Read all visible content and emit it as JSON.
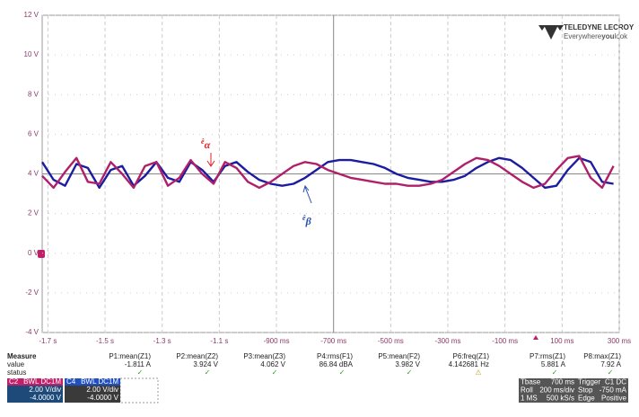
{
  "chart_data": {
    "type": "line",
    "xlim": [
      -1.72,
      0.3
    ],
    "ylim": [
      -4,
      12
    ],
    "xticks": [
      {
        "value": -1.7,
        "label": "-1.7 s"
      },
      {
        "value": -1.5,
        "label": "-1.5 s"
      },
      {
        "value": -1.3,
        "label": "-1.3 s"
      },
      {
        "value": -1.1,
        "label": "-1.1 s"
      },
      {
        "value": -0.9,
        "label": "-900 ms"
      },
      {
        "value": -0.7,
        "label": "-700 ms"
      },
      {
        "value": -0.5,
        "label": "-500 ms"
      },
      {
        "value": -0.3,
        "label": "-300 ms"
      },
      {
        "value": -0.1,
        "label": "-100 ms"
      },
      {
        "value": 0.1,
        "label": "100 ms"
      },
      {
        "value": 0.3,
        "label": "300 ms"
      }
    ],
    "yticks": [
      {
        "value": 12,
        "label": "12 V"
      },
      {
        "value": 10,
        "label": "10 V"
      },
      {
        "value": 8,
        "label": "8 V"
      },
      {
        "value": 6,
        "label": "6 V"
      },
      {
        "value": 4,
        "label": "4 V"
      },
      {
        "value": 2,
        "label": "2 V"
      },
      {
        "value": 0,
        "label": "0 V"
      },
      {
        "value": -2,
        "label": "-2 V"
      },
      {
        "value": -4,
        "label": "-4 V"
      }
    ],
    "grid": true,
    "x": [
      -1.72,
      -1.68,
      -1.64,
      -1.6,
      -1.56,
      -1.52,
      -1.48,
      -1.44,
      -1.4,
      -1.36,
      -1.32,
      -1.28,
      -1.24,
      -1.2,
      -1.16,
      -1.12,
      -1.08,
      -1.04,
      -1.0,
      -0.96,
      -0.92,
      -0.88,
      -0.84,
      -0.8,
      -0.76,
      -0.72,
      -0.68,
      -0.64,
      -0.6,
      -0.56,
      -0.52,
      -0.48,
      -0.44,
      -0.4,
      -0.36,
      -0.32,
      -0.28,
      -0.24,
      -0.2,
      -0.16,
      -0.12,
      -0.08,
      -0.04,
      0.0,
      0.04,
      0.08,
      0.12,
      0.16,
      0.2,
      0.24,
      0.28
    ],
    "series": [
      {
        "name": "ê",
        "subscript": "β",
        "color": "#1c1ca0",
        "label_color": "#2a4fb0",
        "values": [
          4.6,
          3.7,
          3.4,
          4.5,
          4.3,
          3.3,
          4.2,
          4.4,
          3.4,
          3.9,
          4.6,
          3.8,
          3.6,
          4.6,
          4.2,
          3.6,
          4.4,
          4.6,
          4.1,
          3.7,
          3.5,
          3.4,
          3.5,
          3.8,
          4.2,
          4.6,
          4.7,
          4.7,
          4.6,
          4.5,
          4.3,
          4.0,
          3.8,
          3.7,
          3.6,
          3.6,
          3.7,
          3.9,
          4.3,
          4.6,
          4.8,
          4.7,
          4.3,
          3.8,
          3.3,
          3.4,
          4.2,
          4.8,
          4.6,
          3.6,
          3.5
        ]
      },
      {
        "name": "ê",
        "subscript": "α",
        "color": "#b0206a",
        "label_color": "#e0202a",
        "values": [
          3.9,
          3.3,
          4.1,
          4.8,
          3.6,
          3.5,
          4.6,
          4.0,
          3.3,
          4.4,
          4.6,
          3.4,
          3.8,
          4.7,
          4.0,
          3.5,
          4.6,
          4.3,
          3.6,
          3.3,
          3.6,
          4.0,
          4.4,
          4.6,
          4.5,
          4.2,
          4.0,
          3.8,
          3.7,
          3.6,
          3.5,
          3.5,
          3.4,
          3.4,
          3.5,
          3.7,
          4.1,
          4.5,
          4.8,
          4.7,
          4.4,
          4.0,
          3.6,
          3.3,
          3.5,
          4.2,
          4.8,
          4.9,
          3.8,
          3.3,
          4.4
        ]
      }
    ]
  },
  "logo": {
    "brand": "TELEDYNE LECROY",
    "tagline": [
      "Everywhere",
      "you",
      "look"
    ]
  },
  "measurements": {
    "header": "Measure",
    "row_labels": [
      "value",
      "status"
    ],
    "items": [
      {
        "name": "P1:mean(Z1)",
        "value": "-1.811 A",
        "status": "✓"
      },
      {
        "name": "P2:mean(Z2)",
        "value": "3.924 V",
        "status": "✓"
      },
      {
        "name": "P3:mean(Z3)",
        "value": "4.062 V",
        "status": "✓"
      },
      {
        "name": "P4:rms(F1)",
        "value": "86.84 dBA",
        "status": "✓"
      },
      {
        "name": "P5:mean(F2)",
        "value": "3.982 V",
        "status": "✓"
      },
      {
        "name": "P6:freq(Z1)",
        "value": "4.142681 Hz",
        "status": "⚠"
      },
      {
        "name": "P7:rms(Z1)",
        "value": "5.881 A",
        "status": "✓"
      },
      {
        "name": "P8:max(Z1)",
        "value": "7.92 A",
        "status": "✓"
      }
    ]
  },
  "channels": [
    {
      "id": "C2",
      "flags": "BWL DC1M",
      "scale": "2.00 V/div",
      "offset": "-4.0000 V",
      "color": "#c0206a",
      "body": "#1e4a7a"
    },
    {
      "id": "C4",
      "flags": "BWL DC1M",
      "scale": "2.00 V/div",
      "offset": "-4.0000 V",
      "color": "#2050c0",
      "body": "#3a3a3a"
    }
  ],
  "timebase": {
    "rows": [
      [
        "Tbase",
        "700 ms",
        "Trigger",
        "C1 DC"
      ],
      [
        "Roll",
        "200 ms/div",
        "Stop",
        "-750 mA"
      ],
      [
        "1 MS",
        "500 kS/s",
        "Edge",
        "Positive"
      ]
    ]
  }
}
